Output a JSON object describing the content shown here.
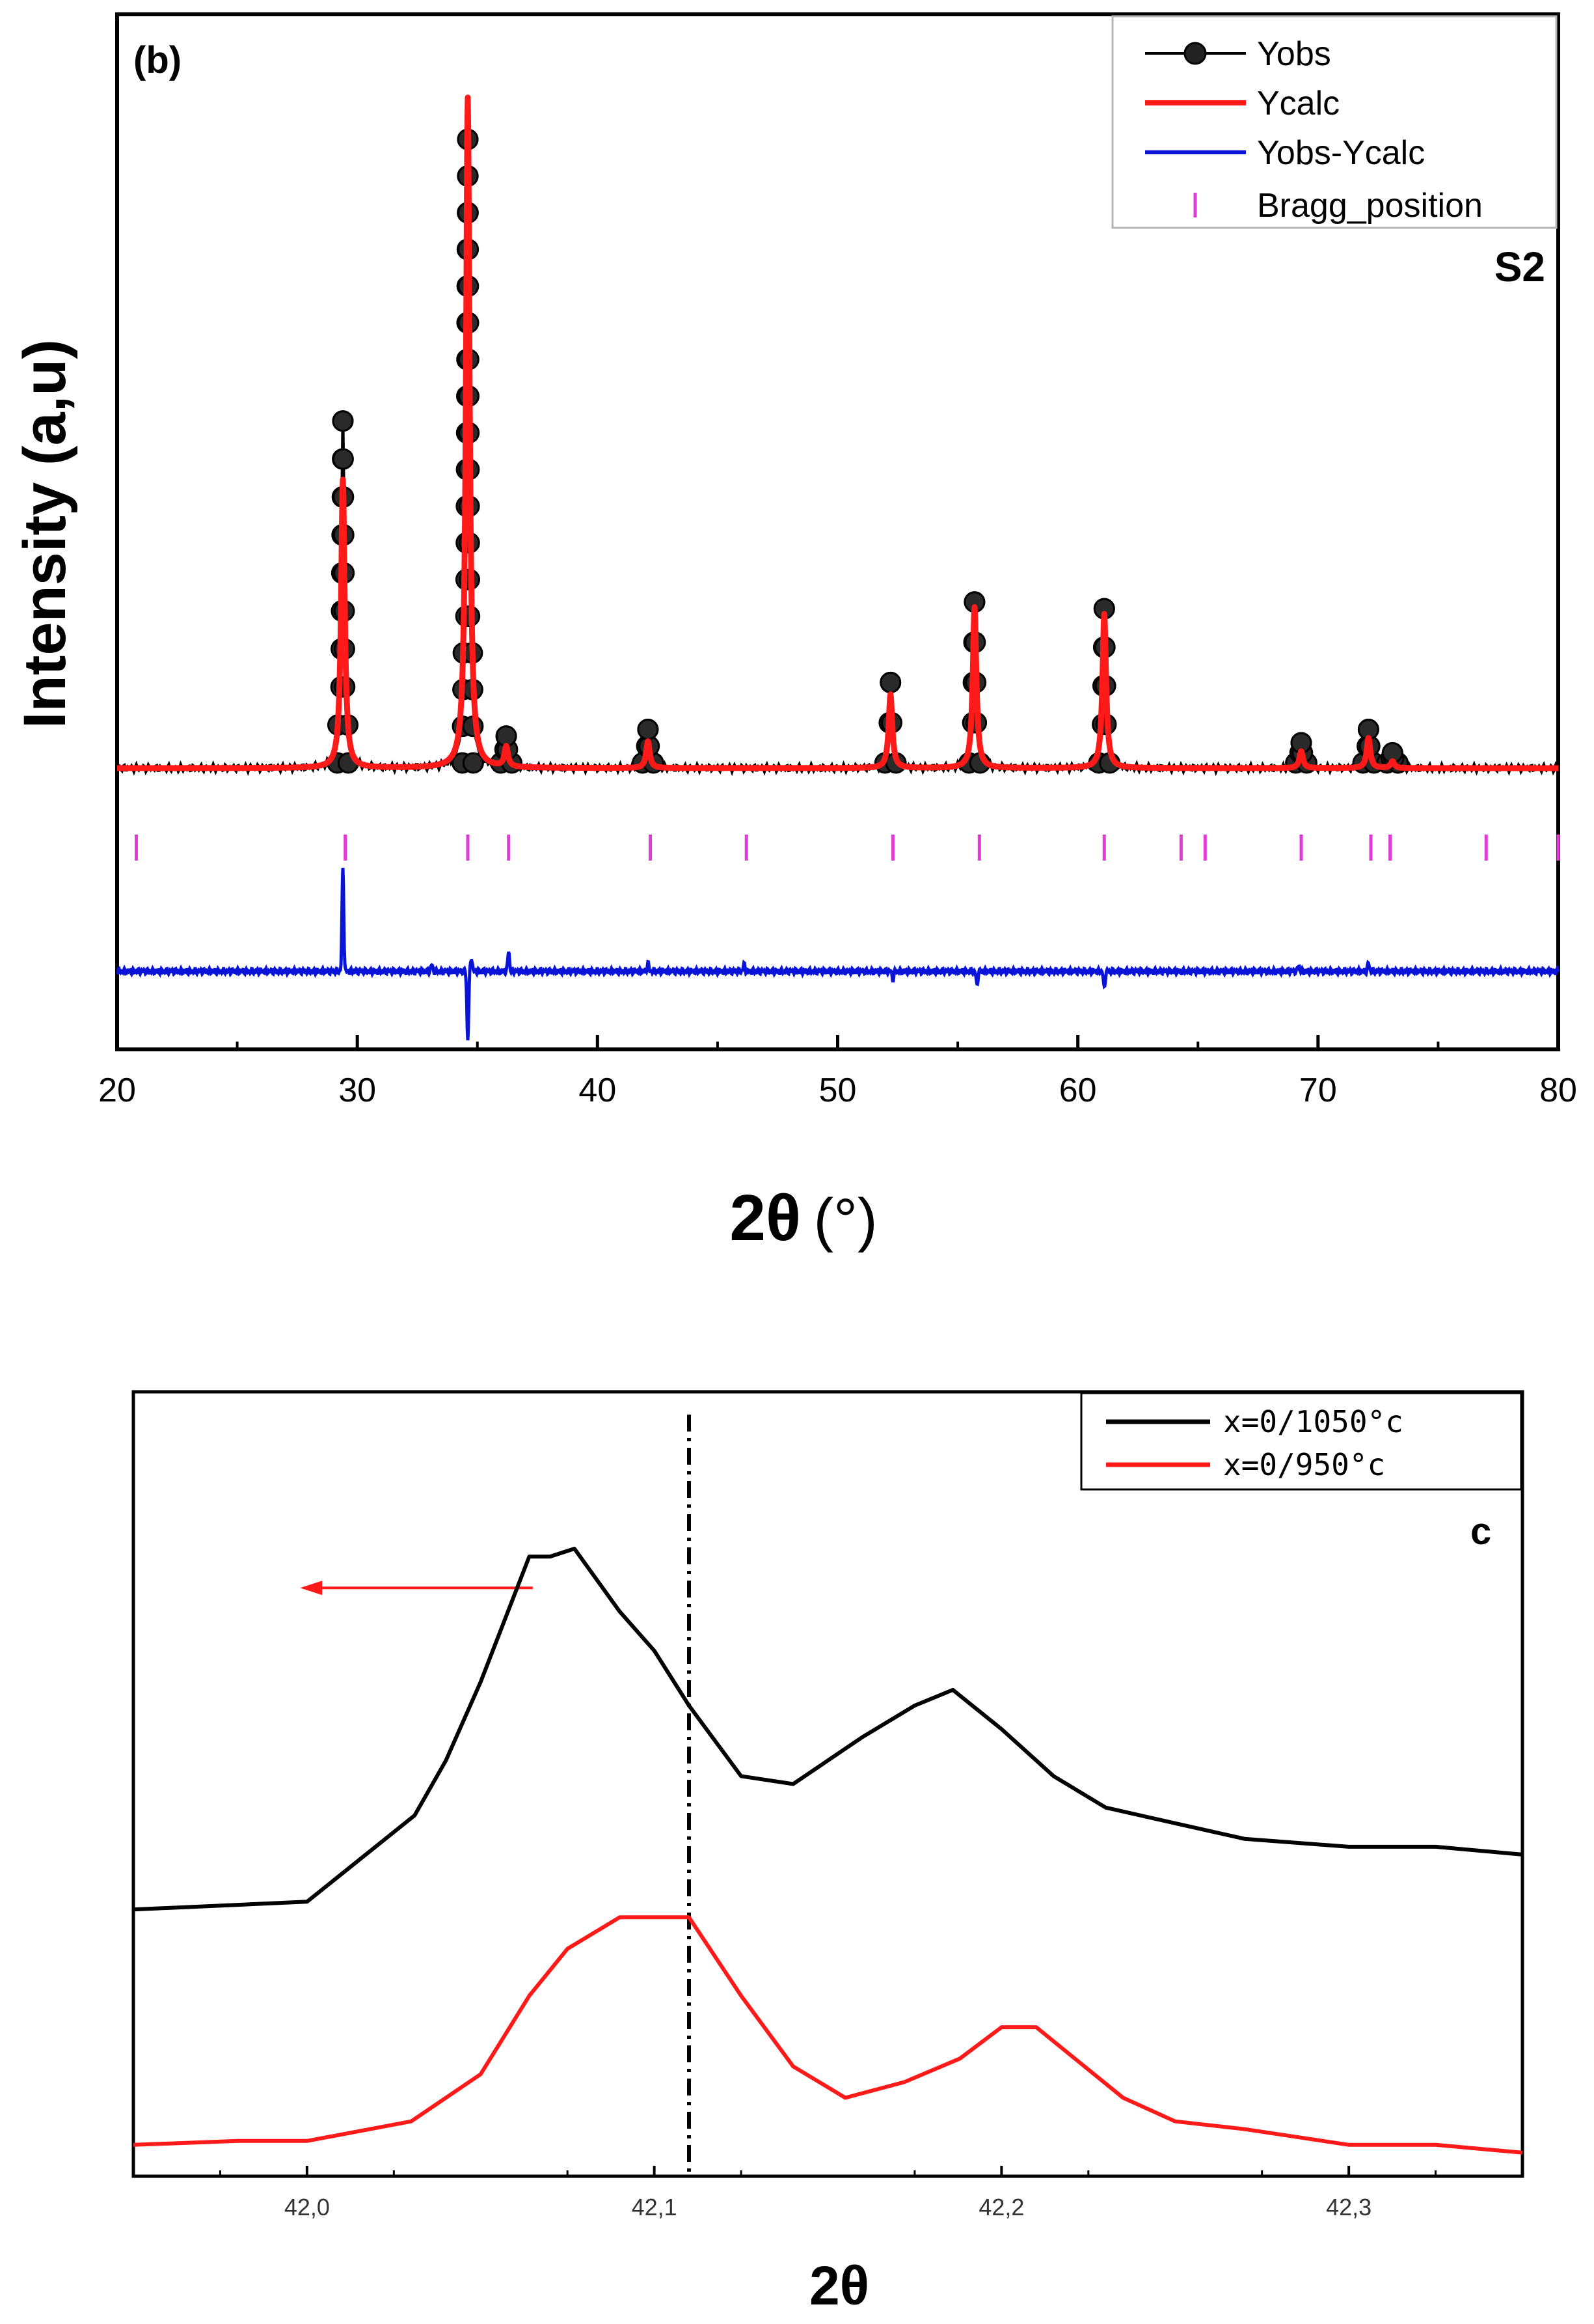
{
  "chart_data": [
    {
      "type": "line",
      "panel_label": "(b)",
      "sample_label": "S2",
      "xlabel_main": "2θ",
      "xlabel_unit": "(°)",
      "ylabel": "Intensity (a,u)",
      "xlim": [
        20,
        80
      ],
      "xticks": [
        "20",
        "30",
        "40",
        "50",
        "60",
        "70",
        "80"
      ],
      "xtick_values": [
        20,
        30,
        40,
        50,
        60,
        70,
        80
      ],
      "legend": [
        "Yobs",
        "Ycalc",
        "Yobs-Ycalc",
        "Bragg_position"
      ],
      "colors": {
        "Yobs": "#000000",
        "Ycalc": "#ff1a1a",
        "diff": "#0a14d8",
        "bragg": "#e23bd8"
      },
      "peaks": [
        {
          "x": 29.4,
          "obs": 0.51,
          "calc": 0.43
        },
        {
          "x": 34.6,
          "obs": 0.93,
          "calc": 1.0
        },
        {
          "x": 36.2,
          "obs": 0.04,
          "calc": 0.03
        },
        {
          "x": 42.1,
          "obs": 0.05,
          "calc": 0.04
        },
        {
          "x": 52.2,
          "obs": 0.12,
          "calc": 0.11
        },
        {
          "x": 55.7,
          "obs": 0.24,
          "calc": 0.24
        },
        {
          "x": 61.1,
          "obs": 0.23,
          "calc": 0.23
        },
        {
          "x": 69.3,
          "obs": 0.03,
          "calc": 0.025
        },
        {
          "x": 72.1,
          "obs": 0.05,
          "calc": 0.045
        },
        {
          "x": 73.1,
          "obs": 0.015,
          "calc": 0.01
        }
      ],
      "bragg_positions": [
        20.8,
        29.5,
        34.6,
        36.3,
        42.2,
        46.2,
        52.3,
        55.9,
        61.1,
        64.3,
        65.3,
        69.3,
        72.2,
        73.0,
        77.0,
        80.0
      ],
      "difference_spikes": [
        {
          "x": 29.4,
          "value": 0.15
        },
        {
          "x": 33.1,
          "value": 0.01
        },
        {
          "x": 34.6,
          "value": -0.1
        },
        {
          "x": 34.75,
          "value": 0.02
        },
        {
          "x": 36.3,
          "value": 0.03
        },
        {
          "x": 42.1,
          "value": 0.012
        },
        {
          "x": 46.1,
          "value": 0.01
        },
        {
          "x": 52.3,
          "value": -0.012
        },
        {
          "x": 55.8,
          "value": -0.02
        },
        {
          "x": 61.1,
          "value": -0.025
        },
        {
          "x": 69.2,
          "value": 0.008
        },
        {
          "x": 72.1,
          "value": 0.012
        }
      ]
    },
    {
      "type": "line",
      "panel_label": "c",
      "xlabel": "2θ",
      "xlim": [
        41.95,
        42.35
      ],
      "xticks": [
        "42,0",
        "42,1",
        "42,2",
        "42,3"
      ],
      "xtick_values": [
        42.0,
        42.1,
        42.2,
        42.3
      ],
      "reference_line_x": 42.11,
      "shift_arrow": {
        "from": 42.065,
        "to": 41.998,
        "direction": "left"
      },
      "series": [
        {
          "name": "x=0/1050°c",
          "color": "#000000",
          "x": [
            41.95,
            42.0,
            42.031,
            42.04,
            42.05,
            42.064,
            42.07,
            42.077,
            42.09,
            42.1,
            42.11,
            42.125,
            42.14,
            42.16,
            42.175,
            42.186,
            42.2,
            42.215,
            42.23,
            42.25,
            42.27,
            42.3,
            42.325,
            42.35
          ],
          "y": [
            0.34,
            0.35,
            0.46,
            0.53,
            0.63,
            0.79,
            0.79,
            0.8,
            0.72,
            0.67,
            0.6,
            0.51,
            0.5,
            0.56,
            0.6,
            0.62,
            0.57,
            0.51,
            0.47,
            0.45,
            0.43,
            0.42,
            0.42,
            0.41
          ]
        },
        {
          "name": "x=0/950°c",
          "color": "#ff1a1a",
          "x": [
            41.95,
            41.98,
            42.0,
            42.03,
            42.05,
            42.064,
            42.075,
            42.09,
            42.1,
            42.11,
            42.125,
            42.14,
            42.155,
            42.172,
            42.188,
            42.2,
            42.21,
            42.235,
            42.25,
            42.27,
            42.3,
            42.325,
            42.35
          ],
          "y": [
            0.04,
            0.045,
            0.045,
            0.07,
            0.13,
            0.23,
            0.29,
            0.33,
            0.33,
            0.33,
            0.23,
            0.14,
            0.1,
            0.12,
            0.15,
            0.19,
            0.19,
            0.1,
            0.07,
            0.06,
            0.04,
            0.04,
            0.03
          ]
        }
      ]
    }
  ]
}
